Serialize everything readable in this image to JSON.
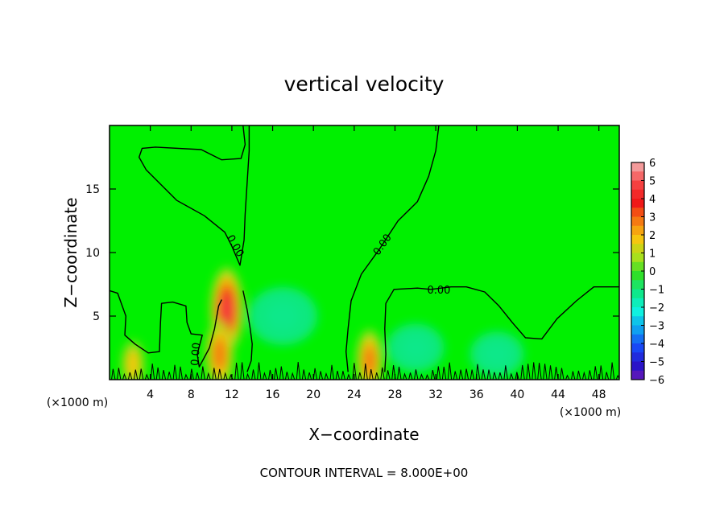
{
  "chart_data": {
    "type": "heatmap",
    "title": "vertical velocity",
    "xlabel": "X−coordinate",
    "ylabel": "Z−coordinate",
    "x_unit_left": "(×1000 m)",
    "x_unit_right": "(×1000 m)",
    "footer": "CONTOUR INTERVAL = 8.000E+00",
    "xlim": [
      0,
      50
    ],
    "ylim": [
      0,
      20
    ],
    "x_ticks": [
      {
        "value": 4,
        "label": "4"
      },
      {
        "value": 8,
        "label": "8"
      },
      {
        "value": 12,
        "label": "12"
      },
      {
        "value": 16,
        "label": "16"
      },
      {
        "value": 20,
        "label": "20"
      },
      {
        "value": 24,
        "label": "24"
      },
      {
        "value": 28,
        "label": "28"
      },
      {
        "value": 32,
        "label": "32"
      },
      {
        "value": 36,
        "label": "36"
      },
      {
        "value": 40,
        "label": "40"
      },
      {
        "value": 44,
        "label": "44"
      },
      {
        "value": 48,
        "label": "48"
      }
    ],
    "y_ticks": [
      {
        "value": 5,
        "label": "5"
      },
      {
        "value": 10,
        "label": "10"
      },
      {
        "value": 15,
        "label": "15"
      }
    ],
    "colorbar": {
      "range": [
        -6,
        6
      ],
      "levels": [
        {
          "value": 6,
          "label": "6",
          "color": "#f39a9a"
        },
        {
          "value": 5,
          "label": "5",
          "color": "#f54040"
        },
        {
          "value": 4,
          "label": "4",
          "color": "#f01818"
        },
        {
          "value": 3,
          "label": "3",
          "color": "#f57a12"
        },
        {
          "value": 2,
          "label": "2",
          "color": "#f5c60f"
        },
        {
          "value": 1,
          "label": "1",
          "color": "#a8e01c"
        },
        {
          "value": 0,
          "label": "0",
          "color": "#2fe02a"
        },
        {
          "value": -1,
          "label": "−1",
          "color": "#0fe88c"
        },
        {
          "value": -2,
          "label": "−2",
          "color": "#0ff0e0"
        },
        {
          "value": -3,
          "label": "−3",
          "color": "#0fa0f0"
        },
        {
          "value": -4,
          "label": "−4",
          "color": "#1848f5"
        },
        {
          "value": -5,
          "label": "−5",
          "color": "#2a14c8"
        },
        {
          "value": -6,
          "label": "−6",
          "color": "#7a1ab0"
        }
      ]
    },
    "background_color": "#00f000",
    "features": [
      {
        "kind": "updraft",
        "x": 11.5,
        "z": 5.5,
        "peak": 4.6
      },
      {
        "kind": "updraft",
        "x": 10.8,
        "z": 2.0,
        "peak": 3.2
      },
      {
        "kind": "updraft",
        "x": 25.5,
        "z": 1.5,
        "peak": 2.8
      },
      {
        "kind": "updraft",
        "x": 2.3,
        "z": 1.2,
        "peak": 1.6
      },
      {
        "kind": "downdraft",
        "x": 17.0,
        "z": 5.0,
        "peak": -1.4
      },
      {
        "kind": "downdraft",
        "x": 30.0,
        "z": 2.5,
        "peak": -0.8
      },
      {
        "kind": "downdraft",
        "x": 38.0,
        "z": 2.0,
        "peak": -0.6
      }
    ],
    "contour_labels": [
      {
        "text": "0.00",
        "x": 12.3,
        "z": 10.5,
        "angle": 60
      },
      {
        "text": "0.00",
        "x": 26.8,
        "z": 10.6,
        "angle": -55
      },
      {
        "text": "0.00",
        "x": 32.3,
        "z": 7.0,
        "angle": 0
      },
      {
        "text": "0.00",
        "x": 8.5,
        "z": 2.0,
        "angle": -85
      }
    ],
    "contours_zero": [
      [
        [
          13.7,
          20
        ],
        [
          13.7,
          18
        ],
        [
          13.3,
          13
        ],
        [
          13.2,
          11
        ],
        [
          12.8,
          9
        ],
        [
          12.0,
          10.5
        ],
        [
          11.3,
          11.6
        ],
        [
          9.3,
          12.9
        ],
        [
          6.6,
          14.1
        ],
        [
          3.6,
          16.5
        ],
        [
          2.9,
          17.5
        ],
        [
          3.2,
          18.2
        ],
        [
          4.5,
          18.3
        ],
        [
          9.0,
          18.1
        ],
        [
          11.0,
          17.3
        ],
        [
          12.9,
          17.4
        ],
        [
          13.3,
          18.5
        ],
        [
          13.1,
          20
        ]
      ],
      [
        [
          32.3,
          20
        ],
        [
          32.0,
          18
        ],
        [
          31.3,
          16
        ],
        [
          30.2,
          14
        ],
        [
          28.3,
          12.5
        ],
        [
          26.5,
          10.3
        ],
        [
          24.7,
          8.3
        ],
        [
          23.7,
          6.2
        ],
        [
          23.4,
          4.0
        ],
        [
          23.2,
          2.2
        ],
        [
          23.4,
          0.6
        ]
      ],
      [
        [
          27.0,
          0.6
        ],
        [
          27.1,
          2.0
        ],
        [
          27.0,
          4.0
        ],
        [
          27.1,
          6.0
        ],
        [
          27.9,
          7.1
        ],
        [
          30.2,
          7.2
        ],
        [
          31.5,
          7.1
        ],
        [
          33.5,
          7.3
        ],
        [
          35.0,
          7.3
        ],
        [
          36.8,
          6.9
        ],
        [
          38.2,
          5.8
        ],
        [
          39.5,
          4.5
        ],
        [
          40.8,
          3.3
        ],
        [
          42.4,
          3.2
        ],
        [
          43.9,
          4.8
        ],
        [
          45.8,
          6.2
        ],
        [
          47.5,
          7.3
        ],
        [
          50.0,
          7.3
        ]
      ],
      [
        [
          0.0,
          7.0
        ],
        [
          0.8,
          6.8
        ],
        [
          1.6,
          5.0
        ],
        [
          1.5,
          3.5
        ],
        [
          2.5,
          2.8
        ],
        [
          3.8,
          2.1
        ],
        [
          4.9,
          2.2
        ],
        [
          5.0,
          4.5
        ],
        [
          5.1,
          6.0
        ],
        [
          6.2,
          6.1
        ],
        [
          7.5,
          5.8
        ],
        [
          7.6,
          4.5
        ],
        [
          8.0,
          3.6
        ],
        [
          9.1,
          3.5
        ],
        [
          8.6,
          2.0
        ],
        [
          8.8,
          1.0
        ],
        [
          9.8,
          2.5
        ],
        [
          10.3,
          4.0
        ],
        [
          10.7,
          5.8
        ],
        [
          11.0,
          6.3
        ]
      ],
      [
        [
          13.1,
          7.0
        ],
        [
          13.5,
          5.5
        ],
        [
          13.8,
          4.0
        ],
        [
          14.0,
          2.8
        ],
        [
          13.9,
          1.5
        ],
        [
          13.5,
          0.6
        ]
      ]
    ]
  }
}
